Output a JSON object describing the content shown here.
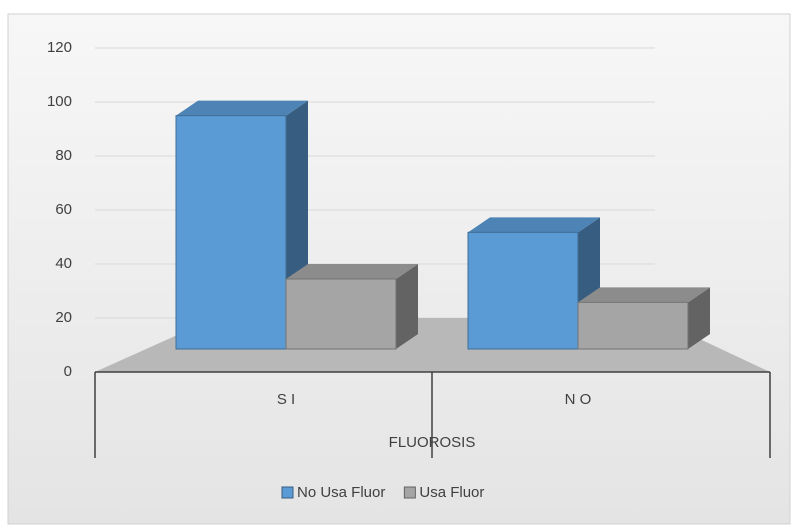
{
  "chart_data": {
    "type": "bar3d",
    "x_label": "FLUOROSIS",
    "categories": [
      "S I",
      "N O"
    ],
    "series": [
      {
        "name": "No Usa Fluor",
        "color": "#5b9bd5",
        "values": [
          100,
          50
        ]
      },
      {
        "name": "Usa Fluor",
        "color": "#a5a5a5",
        "values": [
          30,
          20
        ]
      }
    ],
    "ylim": [
      0,
      120
    ],
    "yticks": [
      0,
      20,
      40,
      60,
      80,
      100,
      120
    ],
    "grid": true
  }
}
